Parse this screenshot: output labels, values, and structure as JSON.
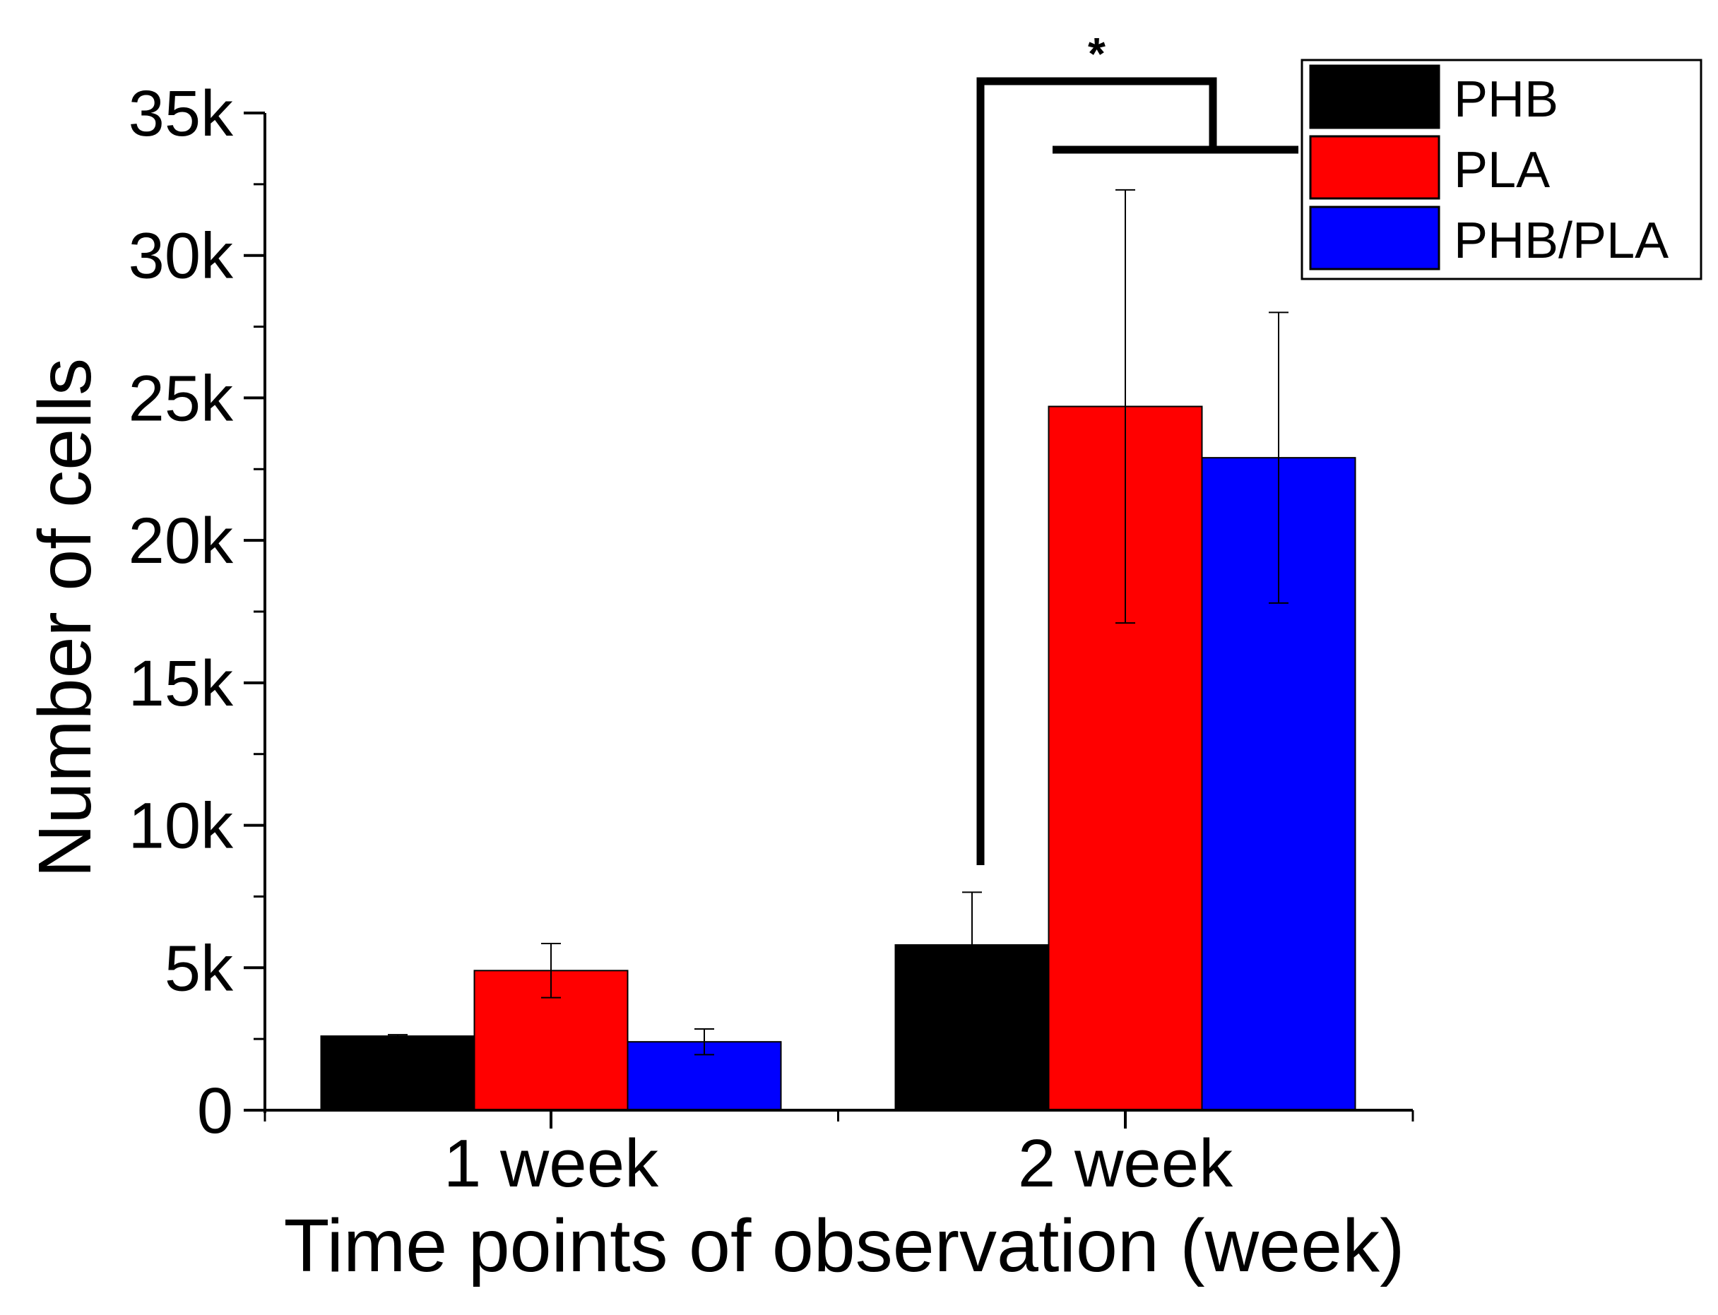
{
  "chart_data": {
    "type": "bar",
    "title": "",
    "xlabel": "Time points of observation (week)",
    "ylabel": "Number of cells",
    "categories": [
      "1 week",
      "2 week"
    ],
    "ylim": [
      0,
      35000
    ],
    "yticks": [
      0,
      5000,
      10000,
      15000,
      20000,
      25000,
      30000,
      35000
    ],
    "ytick_labels": [
      "0",
      "5k",
      "10k",
      "15k",
      "20k",
      "25k",
      "30k",
      "35k"
    ],
    "series": [
      {
        "name": "PHB",
        "color": "#000000",
        "values": [
          2600,
          5800
        ],
        "errors": [
          50,
          1850
        ]
      },
      {
        "name": "PLA",
        "color": "#ff0000",
        "values": [
          4900,
          24700
        ],
        "errors": [
          950,
          7600
        ]
      },
      {
        "name": "PHB/PLA",
        "color": "#0000ff",
        "values": [
          2400,
          22900
        ],
        "errors": [
          450,
          5100
        ]
      }
    ],
    "legend": {
      "position": "top-right"
    },
    "grid": false,
    "significance": [
      {
        "label": "*",
        "category": "2 week",
        "from_series": "PHB",
        "to_group": [
          "PLA",
          "PHB/PLA"
        ]
      }
    ]
  }
}
